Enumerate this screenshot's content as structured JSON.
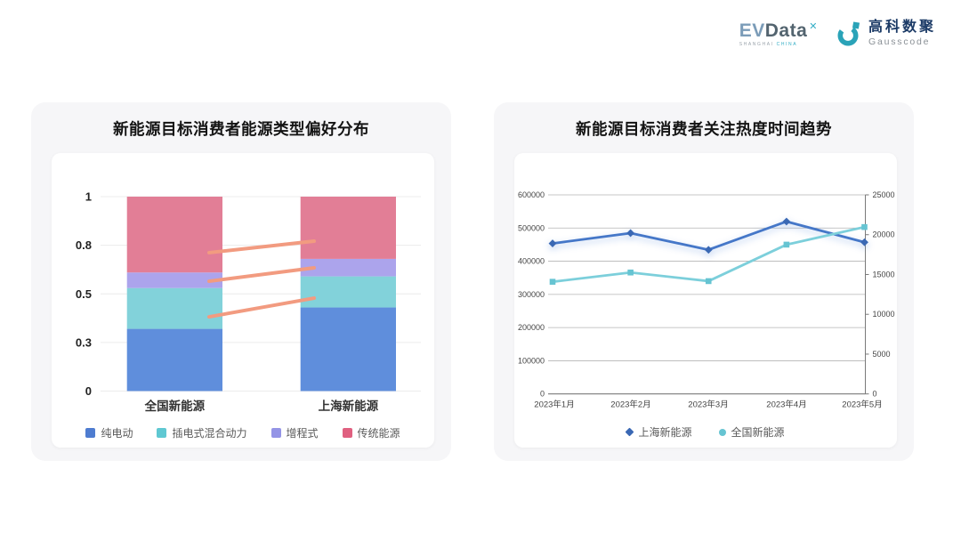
{
  "header": {
    "evdata_logo": {
      "ev": "EV",
      "data": "Data",
      "x_mark": "✕",
      "sub_left": "SHANGHAI",
      "sub_right": "CHINA"
    },
    "gausscode_logo": {
      "cn_name": "高科数聚",
      "en_name": "Gausscode"
    }
  },
  "brand": {
    "teal": "#2aa3b8",
    "slate": "#53646f",
    "navy": "#1b3a66"
  },
  "chart_data": [
    {
      "type": "bar",
      "stacked": true,
      "title": "新能源目标消费者能源类型偏好分布",
      "categories": [
        "全国新能源",
        "上海新能源"
      ],
      "series": [
        {
          "name": "纯电动",
          "color": "#5f8edc",
          "legend_color": "#4e7cd0",
          "values": [
            0.32,
            0.43
          ]
        },
        {
          "name": "插电式混合动力",
          "color": "#82d2da",
          "legend_color": "#5fc8d2",
          "values": [
            0.21,
            0.16
          ]
        },
        {
          "name": "增程式",
          "color": "#aca4ec",
          "legend_color": "#9494e6",
          "values": [
            0.08,
            0.09
          ]
        },
        {
          "name": "传统能源",
          "color": "#e27e96",
          "legend_color": "#e06080",
          "values": [
            0.39,
            0.32
          ]
        }
      ],
      "ylim": [
        0,
        1
      ],
      "y_axis": {
        "labels": [
          "0",
          "0.3",
          "0.5",
          "0.8",
          "1"
        ],
        "fractions": [
          0,
          0.25,
          0.5,
          0.75,
          1
        ]
      },
      "grid": true,
      "legend_position": "bottom",
      "connectors": {
        "color": "#f29b80",
        "segments": [
          [
            0.712,
            0.771
          ],
          [
            0.565,
            0.634
          ],
          [
            0.382,
            0.478
          ]
        ]
      }
    },
    {
      "type": "line",
      "title": "新能源目标消费者关注热度时间趋势",
      "x": [
        "2023年1月",
        "2023年2月",
        "2023年3月",
        "2023年4月",
        "2023年5月"
      ],
      "series": [
        {
          "name": "上海新能源",
          "axis": "right",
          "color": "#4577c8",
          "marker_color": "#3a68b4",
          "marker": "diamond",
          "values": [
            18900,
            20200,
            18100,
            21650,
            19050
          ]
        },
        {
          "name": "全国新能源",
          "axis": "left",
          "color": "#7ccfdb",
          "marker_color": "#66c4d2",
          "marker": "square",
          "values": [
            338000,
            366000,
            340000,
            450000,
            503000
          ]
        }
      ],
      "left_axis": {
        "min": 0,
        "max": 600000,
        "labels": [
          "0",
          "100000",
          "200000",
          "300000",
          "400000",
          "500000",
          "600000"
        ]
      },
      "right_axis": {
        "min": 0,
        "max": 25000,
        "labels": [
          "0",
          "5000",
          "10000",
          "15000",
          "20000",
          "25000"
        ]
      },
      "grid": true,
      "legend_position": "bottom"
    }
  ]
}
